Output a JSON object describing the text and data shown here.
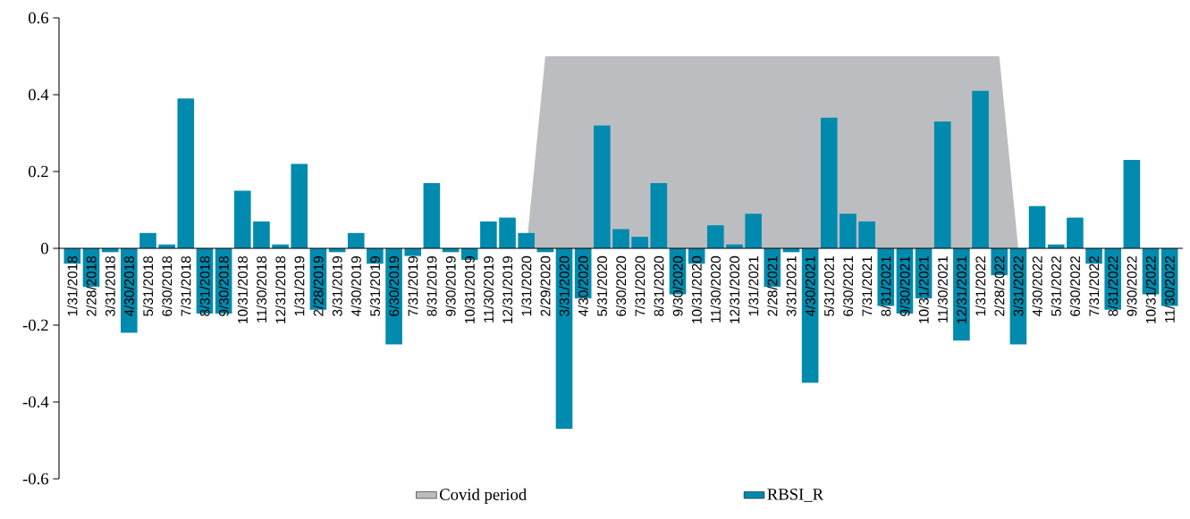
{
  "chart_data": {
    "type": "bar",
    "categories": [
      "1/31/2018",
      "2/28/2018",
      "3/31/2018",
      "4/30/2018",
      "5/31/2018",
      "6/30/2018",
      "7/31/2018",
      "8/31/2018",
      "9/30/2018",
      "10/31/2018",
      "11/30/2018",
      "12/31/2018",
      "1/31/2019",
      "2/28/2019",
      "3/31/2019",
      "4/30/2019",
      "5/31/2019",
      "6/30/2019",
      "7/31/2019",
      "8/31/2019",
      "9/30/2019",
      "10/31/2019",
      "11/30/2019",
      "12/31/2019",
      "1/31/2020",
      "2/29/2020",
      "3/31/2020",
      "4/30/2020",
      "5/31/2020",
      "6/30/2020",
      "7/31/2020",
      "8/31/2020",
      "9/30/2020",
      "10/31/2020",
      "11/30/2020",
      "12/31/2020",
      "1/31/2021",
      "2/28/2021",
      "3/31/2021",
      "4/30/2021",
      "5/31/2021",
      "6/30/2021",
      "7/31/2021",
      "8/31/2021",
      "9/30/2021",
      "10/31/2021",
      "11/30/2021",
      "12/31/2021",
      "1/31/2022",
      "2/28/2022",
      "3/31/2022",
      "4/30/2022",
      "5/31/2022",
      "6/30/2022",
      "7/31/2022",
      "8/31/2022",
      "9/30/2022",
      "10/31/2022",
      "11/30/2022"
    ],
    "series": [
      {
        "name": "Covid period",
        "type": "area",
        "color": "#bcbdc0",
        "values": [
          null,
          null,
          null,
          null,
          null,
          null,
          null,
          null,
          null,
          null,
          null,
          null,
          null,
          null,
          null,
          null,
          null,
          null,
          null,
          null,
          null,
          null,
          null,
          null,
          0,
          0.5,
          0.5,
          0.5,
          0.5,
          0.5,
          0.5,
          0.5,
          0.5,
          0.5,
          0.5,
          0.5,
          0.5,
          0.5,
          0.5,
          0.5,
          0.5,
          0.5,
          0.5,
          0.5,
          0.5,
          0.5,
          0.5,
          0.5,
          0.5,
          0.5,
          0,
          null,
          null,
          null,
          null,
          null,
          null,
          null,
          null
        ]
      },
      {
        "name": "RBSI_R",
        "color": "#008aad",
        "values": [
          -0.04,
          -0.1,
          -0.01,
          -0.22,
          0.04,
          0.01,
          0.39,
          -0.17,
          -0.17,
          0.15,
          0.07,
          0.01,
          0.22,
          -0.16,
          -0.01,
          0.04,
          -0.04,
          -0.25,
          -0.02,
          0.17,
          -0.01,
          -0.03,
          0.07,
          0.08,
          0.04,
          -0.01,
          -0.47,
          -0.13,
          0.32,
          0.05,
          0.03,
          0.17,
          -0.12,
          -0.04,
          0.06,
          0.01,
          0.09,
          -0.1,
          -0.01,
          -0.35,
          0.34,
          0.09,
          0.07,
          -0.15,
          -0.17,
          -0.13,
          0.33,
          -0.24,
          0.41,
          -0.07,
          -0.25,
          0.11,
          0.01,
          0.08,
          -0.04,
          -0.16,
          0.23,
          -0.12,
          -0.15
        ]
      }
    ],
    "ylim": [
      -0.6,
      0.6
    ],
    "yticks": [
      -0.6,
      -0.4,
      -0.2,
      0,
      0.2,
      0.4,
      0.6
    ],
    "grid": false,
    "legend": "bottom"
  }
}
